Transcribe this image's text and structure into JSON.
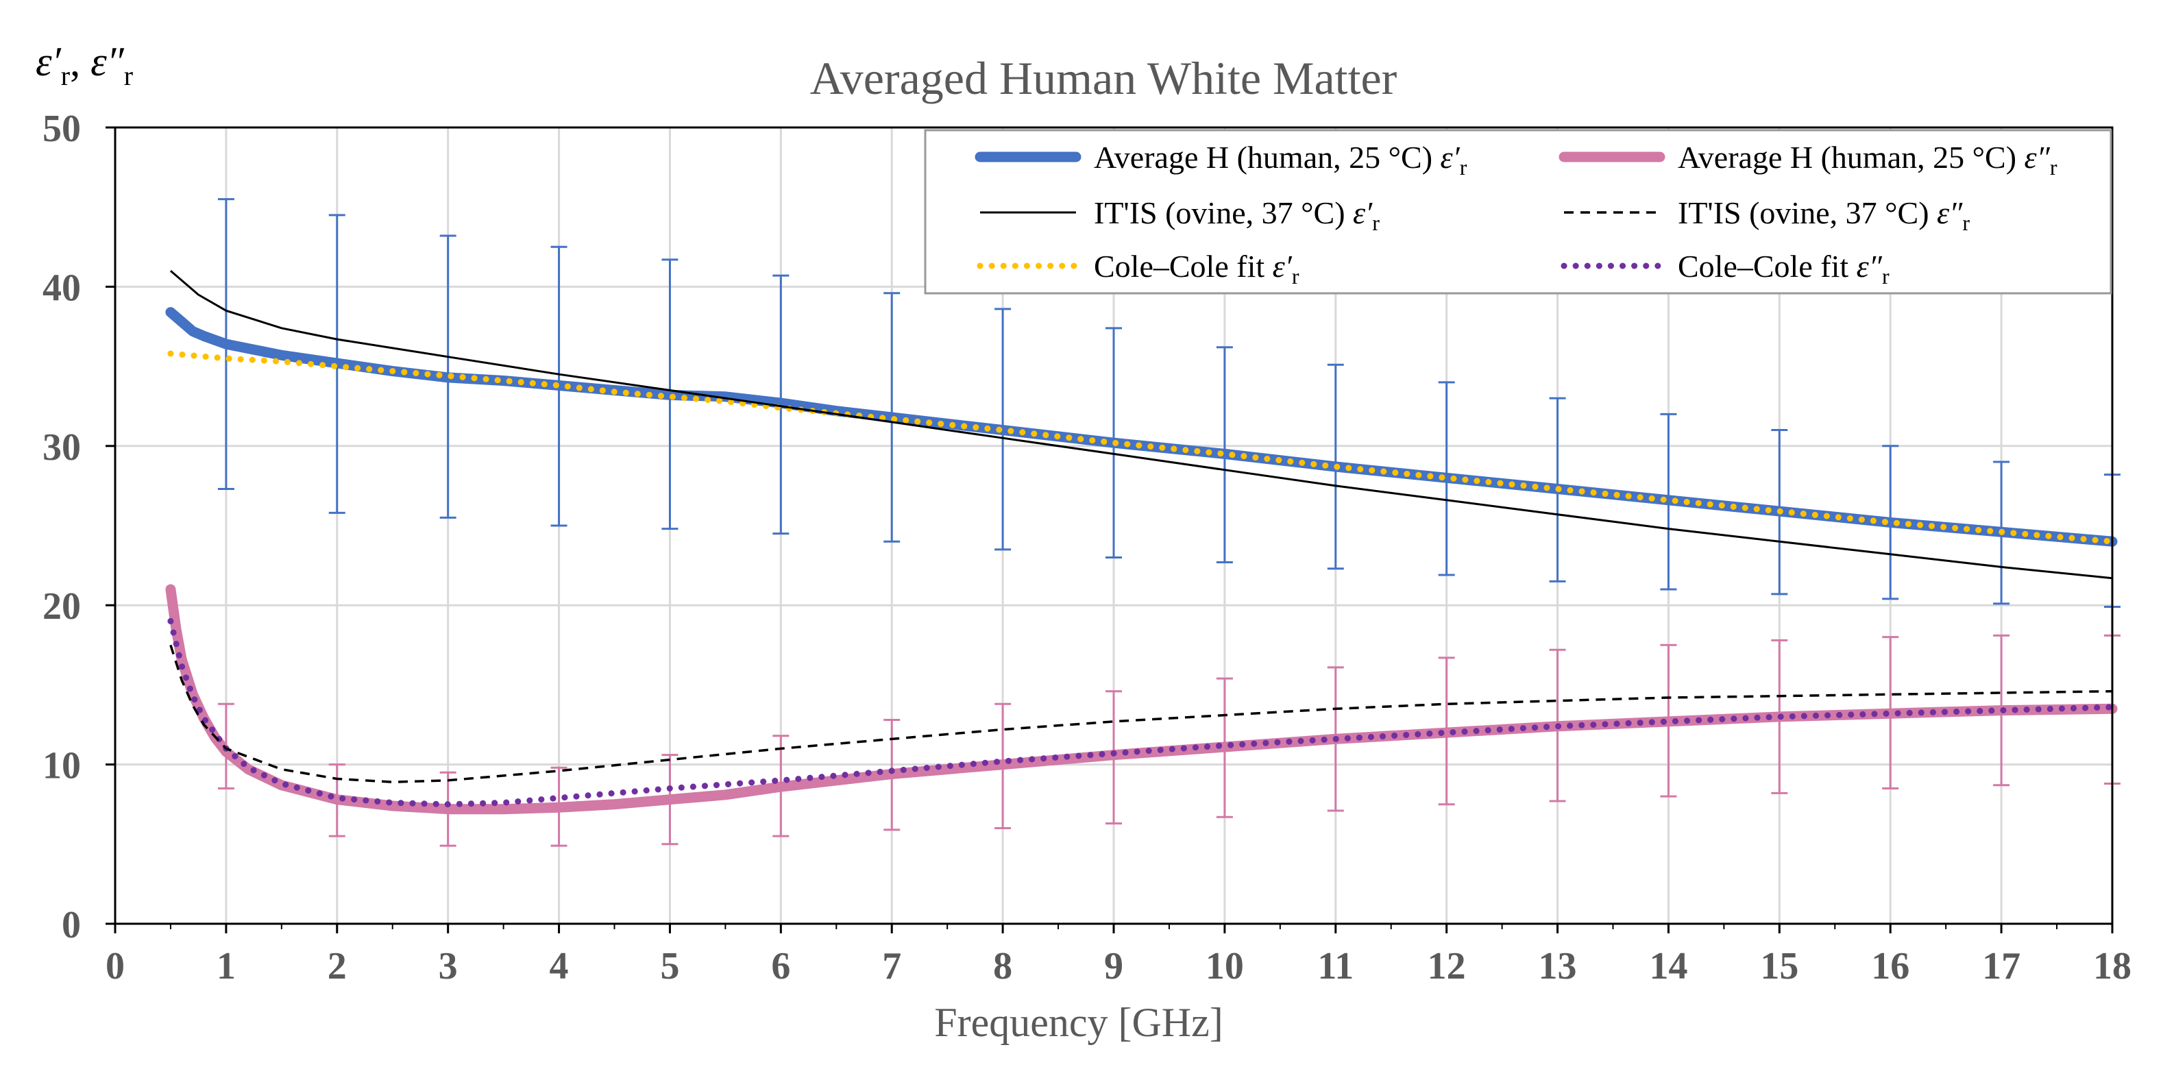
{
  "chart_data": {
    "type": "line",
    "title": "Averaged Human White Matter",
    "xlabel": "Frequency [GHz]",
    "ylabel": "ε′r, ε″r",
    "xlim": [
      0,
      18
    ],
    "ylim": [
      0,
      50
    ],
    "xticks": [
      0,
      1,
      2,
      3,
      4,
      5,
      6,
      7,
      8,
      9,
      10,
      11,
      12,
      13,
      14,
      15,
      16,
      17,
      18
    ],
    "yticks": [
      0,
      10,
      20,
      30,
      40,
      50
    ],
    "grid": true,
    "legend_position": "top-right",
    "series": [
      {
        "name": "Average H (human, 25 °C) ε′r",
        "style": "thick-solid",
        "color": "#4472C4",
        "x": [
          0.5,
          0.6,
          0.7,
          0.8,
          1,
          1.5,
          2,
          2.5,
          3,
          3.5,
          4,
          4.5,
          5,
          5.5,
          6,
          6.5,
          7,
          8,
          9,
          10,
          11,
          12,
          13,
          14,
          15,
          16,
          17,
          18
        ],
        "y": [
          38.4,
          37.8,
          37.2,
          36.9,
          36.4,
          35.7,
          35.2,
          34.7,
          34.3,
          34.1,
          33.8,
          33.5,
          33.2,
          33.1,
          32.7,
          32.2,
          31.8,
          31.0,
          30.2,
          29.5,
          28.7,
          28.0,
          27.3,
          26.6,
          25.9,
          25.2,
          24.6,
          24.0
        ]
      },
      {
        "name": "Average H (human, 25 °C) ε″r",
        "style": "thick-solid",
        "color": "#D279A6",
        "x": [
          0.5,
          0.55,
          0.6,
          0.7,
          0.8,
          0.9,
          1,
          1.2,
          1.5,
          2,
          2.5,
          3,
          3.5,
          4,
          4.5,
          5,
          5.5,
          6,
          7,
          8,
          9,
          10,
          11,
          12,
          13,
          14,
          15,
          16,
          17,
          18
        ],
        "y": [
          21.0,
          18.5,
          16.6,
          14.4,
          12.9,
          11.7,
          10.8,
          9.7,
          8.7,
          7.8,
          7.4,
          7.2,
          7.2,
          7.3,
          7.5,
          7.8,
          8.1,
          8.6,
          9.4,
          10.0,
          10.6,
          11.1,
          11.6,
          12.0,
          12.4,
          12.7,
          13.0,
          13.2,
          13.4,
          13.5
        ]
      },
      {
        "name": "IT'IS (ovine, 37 °C) ε′r",
        "style": "thin-solid",
        "color": "#000000",
        "x": [
          0.5,
          0.75,
          1,
          1.5,
          2,
          3,
          4,
          5,
          6,
          7,
          8,
          9,
          10,
          11,
          12,
          13,
          14,
          15,
          16,
          17,
          18
        ],
        "y": [
          41.0,
          39.5,
          38.5,
          37.4,
          36.7,
          35.6,
          34.5,
          33.5,
          32.5,
          31.5,
          30.5,
          29.5,
          28.5,
          27.5,
          26.6,
          25.7,
          24.8,
          24.0,
          23.2,
          22.4,
          21.7
        ]
      },
      {
        "name": "IT'IS (ovine, 37 °C) ε″r",
        "style": "dashed",
        "color": "#000000",
        "x": [
          0.5,
          0.6,
          0.7,
          0.8,
          1,
          1.5,
          2,
          2.5,
          3,
          3.5,
          4,
          5,
          6,
          7,
          8,
          9,
          10,
          11,
          12,
          13,
          14,
          15,
          16,
          17,
          18
        ],
        "y": [
          17.5,
          15.3,
          13.7,
          12.5,
          11.0,
          9.7,
          9.1,
          8.9,
          9.0,
          9.3,
          9.6,
          10.3,
          11.0,
          11.6,
          12.2,
          12.7,
          13.1,
          13.5,
          13.8,
          14.0,
          14.2,
          14.3,
          14.4,
          14.5,
          14.6
        ]
      },
      {
        "name": "Cole–Cole fit ε′r",
        "style": "dotted",
        "color": "#FFC000",
        "x": [
          0.5,
          1,
          1.5,
          2,
          2.5,
          3,
          3.5,
          4,
          4.5,
          5,
          5.5,
          6,
          7,
          8,
          9,
          10,
          11,
          12,
          13,
          14,
          15,
          16,
          17,
          18
        ],
        "y": [
          35.8,
          35.5,
          35.3,
          35.0,
          34.7,
          34.4,
          34.1,
          33.8,
          33.4,
          33.1,
          32.8,
          32.4,
          31.7,
          31.0,
          30.2,
          29.5,
          28.7,
          28.0,
          27.3,
          26.6,
          25.9,
          25.2,
          24.6,
          24.0
        ]
      },
      {
        "name": "Cole–Cole fit ε″r",
        "style": "dotted",
        "color": "#7030A0",
        "x": [
          0.5,
          0.6,
          0.7,
          0.8,
          1,
          1.2,
          1.5,
          2,
          2.5,
          3,
          3.5,
          4,
          4.5,
          5,
          6,
          7,
          8,
          9,
          10,
          11,
          12,
          13,
          14,
          15,
          16,
          17,
          18
        ],
        "y": [
          19.0,
          16.2,
          14.3,
          12.9,
          11.0,
          9.8,
          8.8,
          7.9,
          7.6,
          7.5,
          7.6,
          7.9,
          8.2,
          8.5,
          9.0,
          9.6,
          10.2,
          10.7,
          11.2,
          11.6,
          12.0,
          12.4,
          12.7,
          13.0,
          13.2,
          13.4,
          13.6
        ]
      }
    ],
    "error_bars": [
      {
        "series": "Average H (human, 25 °C) ε′r",
        "color": "#4472C4",
        "x": [
          1,
          2,
          3,
          4,
          5,
          6,
          7,
          8,
          9,
          10,
          11,
          12,
          13,
          14,
          15,
          16,
          17,
          18
        ],
        "low": [
          27.3,
          25.8,
          25.5,
          25.0,
          24.8,
          24.5,
          24.0,
          23.5,
          23.0,
          22.7,
          22.3,
          21.9,
          21.5,
          21.0,
          20.7,
          20.4,
          20.1,
          19.9
        ],
        "high": [
          45.5,
          44.5,
          43.2,
          42.5,
          41.7,
          40.7,
          39.6,
          38.6,
          37.4,
          36.2,
          35.1,
          34.0,
          33.0,
          32.0,
          31.0,
          30.0,
          29.0,
          28.2
        ]
      },
      {
        "series": "Average H (human, 25 °C) ε″r",
        "color": "#D279A6",
        "x": [
          1,
          2,
          3,
          4,
          5,
          6,
          7,
          8,
          9,
          10,
          11,
          12,
          13,
          14,
          15,
          16,
          17,
          18
        ],
        "low": [
          8.5,
          5.5,
          4.9,
          4.9,
          5.0,
          5.5,
          5.9,
          6.0,
          6.3,
          6.7,
          7.1,
          7.5,
          7.7,
          8.0,
          8.2,
          8.5,
          8.7,
          8.8
        ],
        "high": [
          13.8,
          10.0,
          9.5,
          9.8,
          10.6,
          11.8,
          12.8,
          13.8,
          14.6,
          15.4,
          16.1,
          16.7,
          17.2,
          17.5,
          17.8,
          18.0,
          18.1,
          18.1
        ]
      }
    ]
  },
  "legend": {
    "items": [
      {
        "base": "Average H (human, 25 °C) ",
        "sym": "ε′",
        "sub": "r"
      },
      {
        "base": "Average H (human, 25 °C) ",
        "sym": "ε″",
        "sub": "r"
      },
      {
        "base": "IT'IS (ovine, 37 °C) ",
        "sym": "ε′",
        "sub": "r"
      },
      {
        "base": "IT'IS (ovine, 37 °C) ",
        "sym": "ε″",
        "sub": "r"
      },
      {
        "base": "Cole–Cole fit  ",
        "sym": "ε′",
        "sub": "r"
      },
      {
        "base": "Cole–Cole fit  ",
        "sym": "ε″",
        "sub": "r"
      }
    ]
  },
  "ylabel_parts": {
    "a": "ε′",
    "a_sub": "r",
    "sep": ", ",
    "b": "ε″",
    "b_sub": "r"
  }
}
